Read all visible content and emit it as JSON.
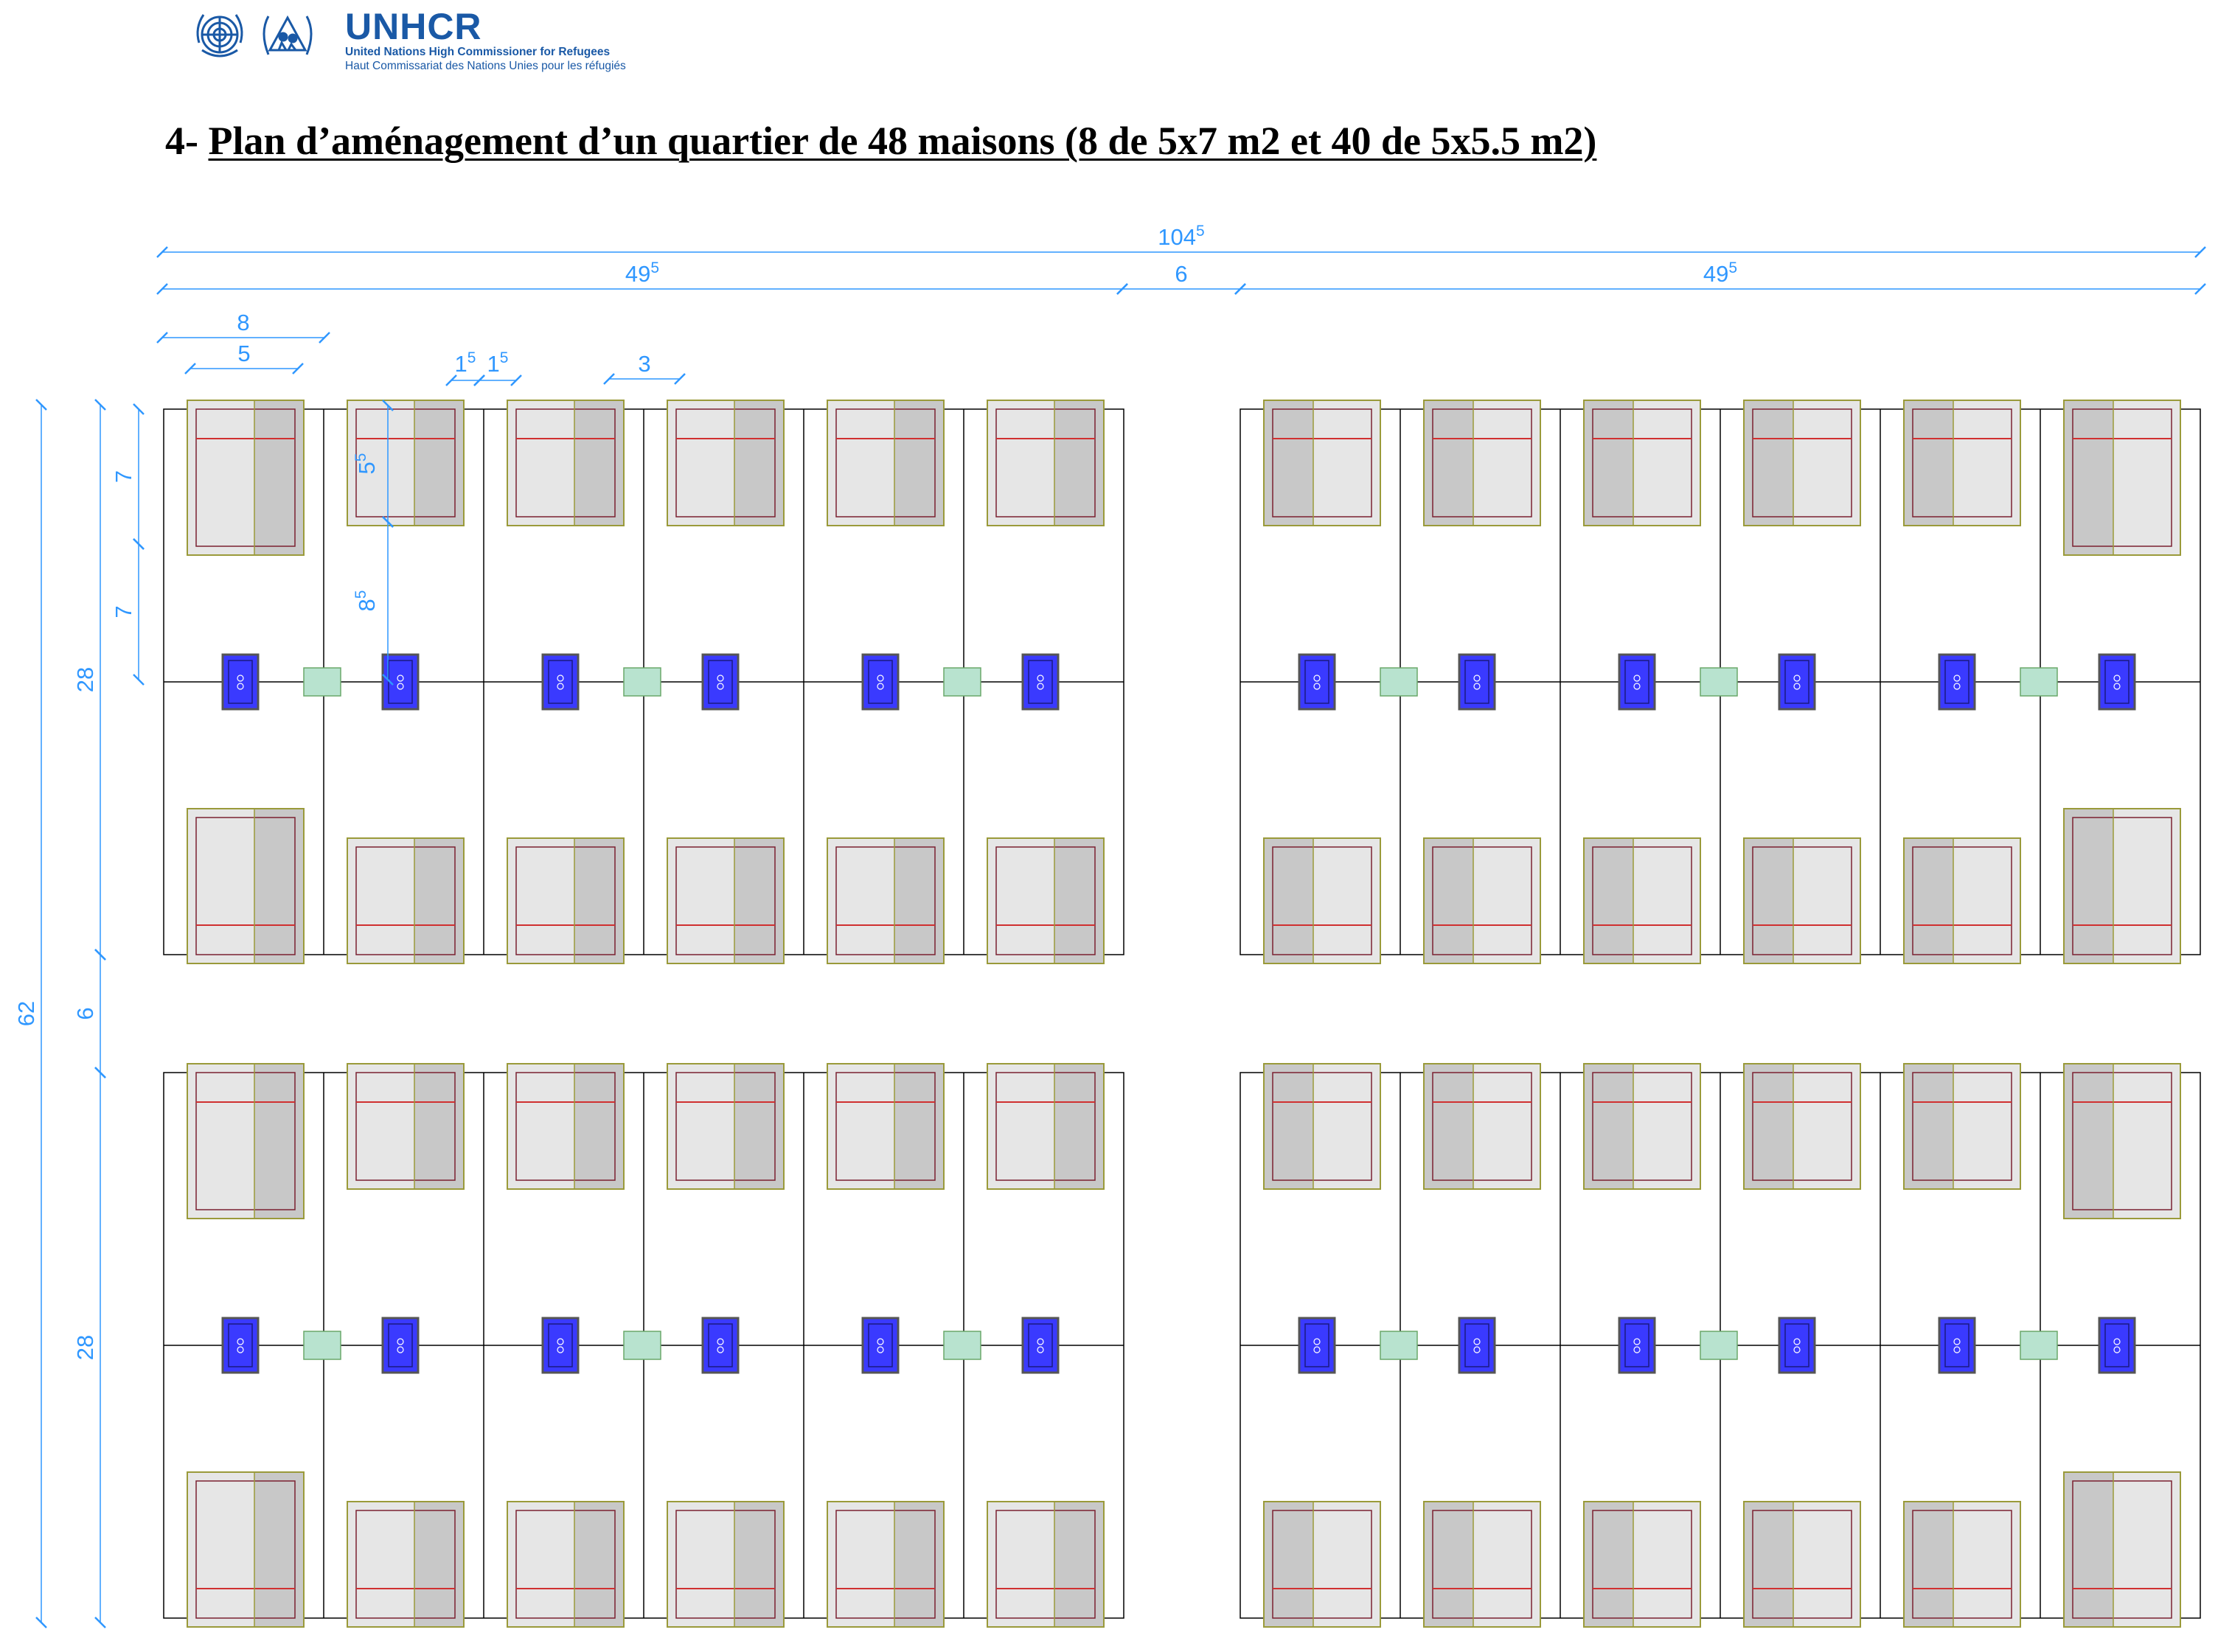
{
  "header": {
    "brand": "UNHCR",
    "tagline_en": "United Nations High Commissioner for Refugees",
    "tagline_fr": "Haut Commissariat des Nations Unies pour les réfugiés"
  },
  "title": {
    "prefix": "4- ",
    "text": "Plan d’aménagement d’un quartier de 48 maisons  (8 de 5x7 m2 et 40 de 5x5.5 m2)"
  },
  "colors": {
    "dimension": "#2f97ff",
    "grid": "#000000",
    "house_outline": "#9a9a3a",
    "house_fill": "#e6e6e6",
    "house_shade": "#c8c8c8",
    "house_border_red": "#d03030",
    "latrine_fill": "#3a3aff",
    "shower_fill": "#b8e3cf"
  },
  "icons": {
    "un_emblem": "un-emblem-icon",
    "unhcr_emblem": "unhcr-emblem-icon"
  },
  "dimensions": {
    "total_width": {
      "main": "104",
      "sup": "5"
    },
    "half_width": {
      "main": "49",
      "sup": "5"
    },
    "road_width": "6",
    "plot_width": "8",
    "house_width": "5",
    "gap_left": {
      "main": "1",
      "sup": "5"
    },
    "gap_right": {
      "main": "1",
      "sup": "5"
    },
    "latrine_width": "3",
    "house_depth": {
      "main": "5",
      "sup": "5"
    },
    "house_to_latrine": {
      "main": "8",
      "sup": "5"
    },
    "plot_depth_a": "7",
    "plot_depth_b": "7",
    "total_depth": "62",
    "block_depth_top": "28",
    "road_depth": "6",
    "block_depth_bottom": "28"
  }
}
